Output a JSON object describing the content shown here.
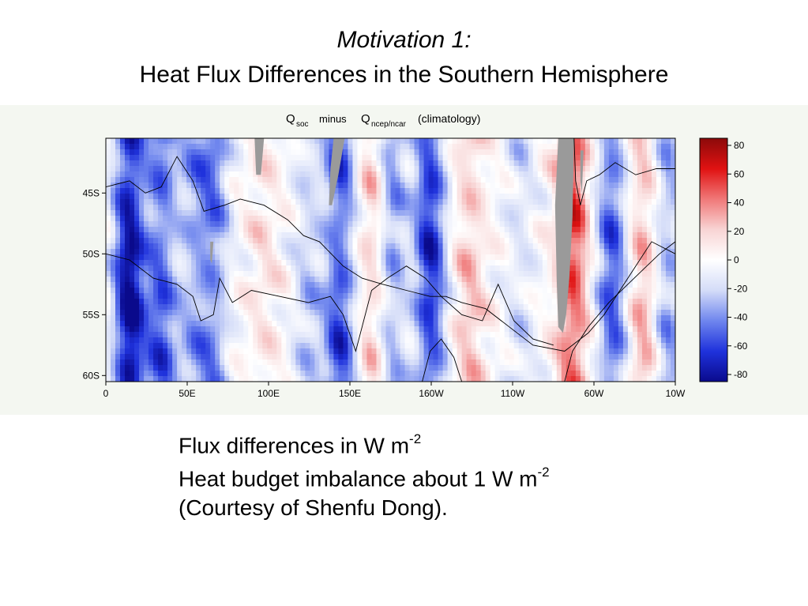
{
  "slide": {
    "title_line1": "Motivation 1:",
    "title_line2": "Heat Flux Differences in the Southern Hemisphere",
    "notes": [
      {
        "text": "Flux differences in W m",
        "sup": "-2"
      },
      {
        "text": "Heat budget imbalance about 1 W m",
        "sup": "-2"
      },
      {
        "text": "(Courtesy of Shenfu Dong).",
        "sup": ""
      }
    ]
  },
  "chart_data": {
    "type": "heatmap",
    "title": {
      "q1": "Q",
      "q1_sub": "soc",
      "minus": "minus",
      "q2": "Q",
      "q2_sub": "ncep/ncar",
      "suffix": "(climatology)"
    },
    "x_ticks": [
      "0",
      "50E",
      "100E",
      "150E",
      "160W",
      "110W",
      "60W",
      "10W"
    ],
    "x_range": [
      0,
      360
    ],
    "y_ticks": [
      "45S",
      "50S",
      "55S",
      "60S"
    ],
    "y_tick_values": [
      -45,
      -50,
      -55,
      -60
    ],
    "y_range": [
      -40.5,
      -60.5
    ],
    "colorbar": {
      "ticks": [
        "80",
        "60",
        "40",
        "20",
        "0",
        "-20",
        "-40",
        "-60",
        "-80"
      ],
      "range": [
        -80,
        80
      ],
      "colors": [
        "#0a0a8c",
        "#1f32dc",
        "#6f86ee",
        "#d4dcf8",
        "#ffffff",
        "#f8d4d4",
        "#f07878",
        "#e01212",
        "#8c0a0a"
      ]
    },
    "land_mask_color": "#9a9a9a",
    "contour_color": "#000000",
    "longitudinal_anomalies": [
      {
        "lon": 15,
        "value": -70
      },
      {
        "lon": 35,
        "value": -45
      },
      {
        "lon": 55,
        "value": -25
      },
      {
        "lon": 68,
        "value": -35
      },
      {
        "lon": 100,
        "value": 10
      },
      {
        "lon": 128,
        "value": -20
      },
      {
        "lon": 148,
        "value": -50
      },
      {
        "lon": 170,
        "value": 25
      },
      {
        "lon": 180,
        "value": -35
      },
      {
        "lon": 205,
        "value": -55
      },
      {
        "lon": 230,
        "value": 20
      },
      {
        "lon": 262,
        "value": -15
      },
      {
        "lon": 295,
        "value": 45
      },
      {
        "lon": 320,
        "value": -45
      },
      {
        "lon": 340,
        "value": 25
      },
      {
        "lon": 355,
        "value": -30
      }
    ]
  }
}
